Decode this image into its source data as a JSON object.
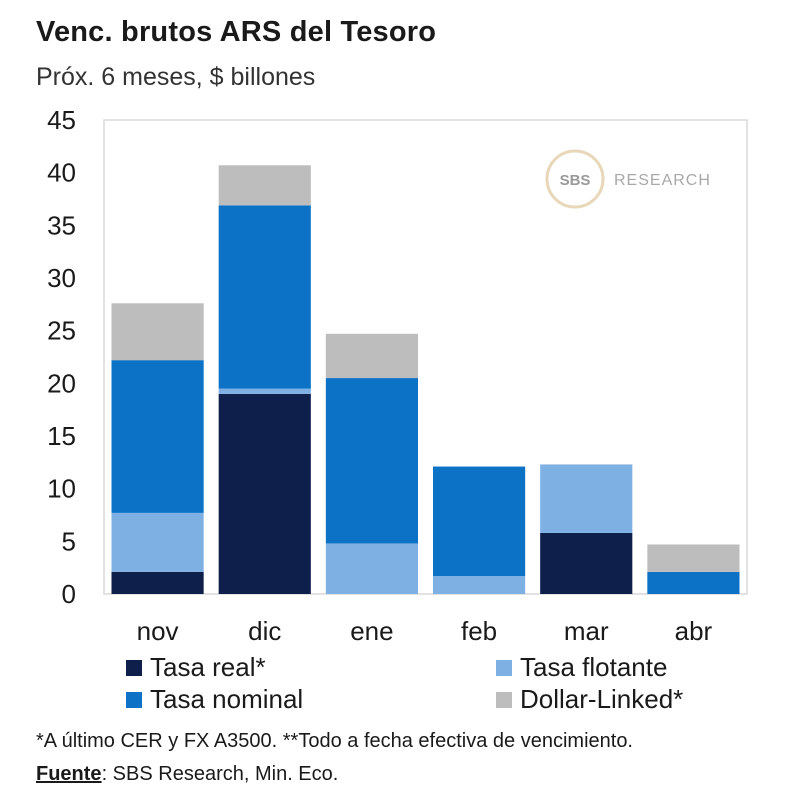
{
  "chart_data": {
    "type": "bar",
    "stacked": true,
    "title": "Venc. brutos ARS del Tesoro",
    "subtitle": "Próx. 6 meses, $ billones",
    "categories": [
      "nov",
      "dic",
      "ene",
      "feb",
      "mar",
      "abr"
    ],
    "ylim": [
      0,
      45
    ],
    "yticks": [
      0,
      5,
      10,
      15,
      20,
      25,
      30,
      35,
      40,
      45
    ],
    "series": [
      {
        "name": "Tasa real*",
        "color": "#0f1f4b",
        "values": [
          2.1,
          19.0,
          0,
          0,
          5.8,
          0
        ]
      },
      {
        "name": "Tasa flotante",
        "color": "#7fb0e4",
        "values": [
          5.6,
          0.5,
          4.8,
          1.7,
          6.5,
          0
        ]
      },
      {
        "name": "Tasa nominal",
        "color": "#0b72c5",
        "values": [
          14.5,
          17.4,
          15.7,
          10.4,
          0,
          2.1
        ]
      },
      {
        "name": "Dollar-Linked*",
        "color": "#bdbdbd",
        "values": [
          5.4,
          3.8,
          4.2,
          0,
          0,
          2.6
        ]
      }
    ],
    "watermark": {
      "badge": "SBS",
      "text": "RESEARCH"
    }
  },
  "footer": {
    "note": "*A último CER y FX A3500. **Todo a fecha efectiva de vencimiento.",
    "source_label": "Fuente",
    "source_text": ": SBS Research, Min. Eco."
  }
}
